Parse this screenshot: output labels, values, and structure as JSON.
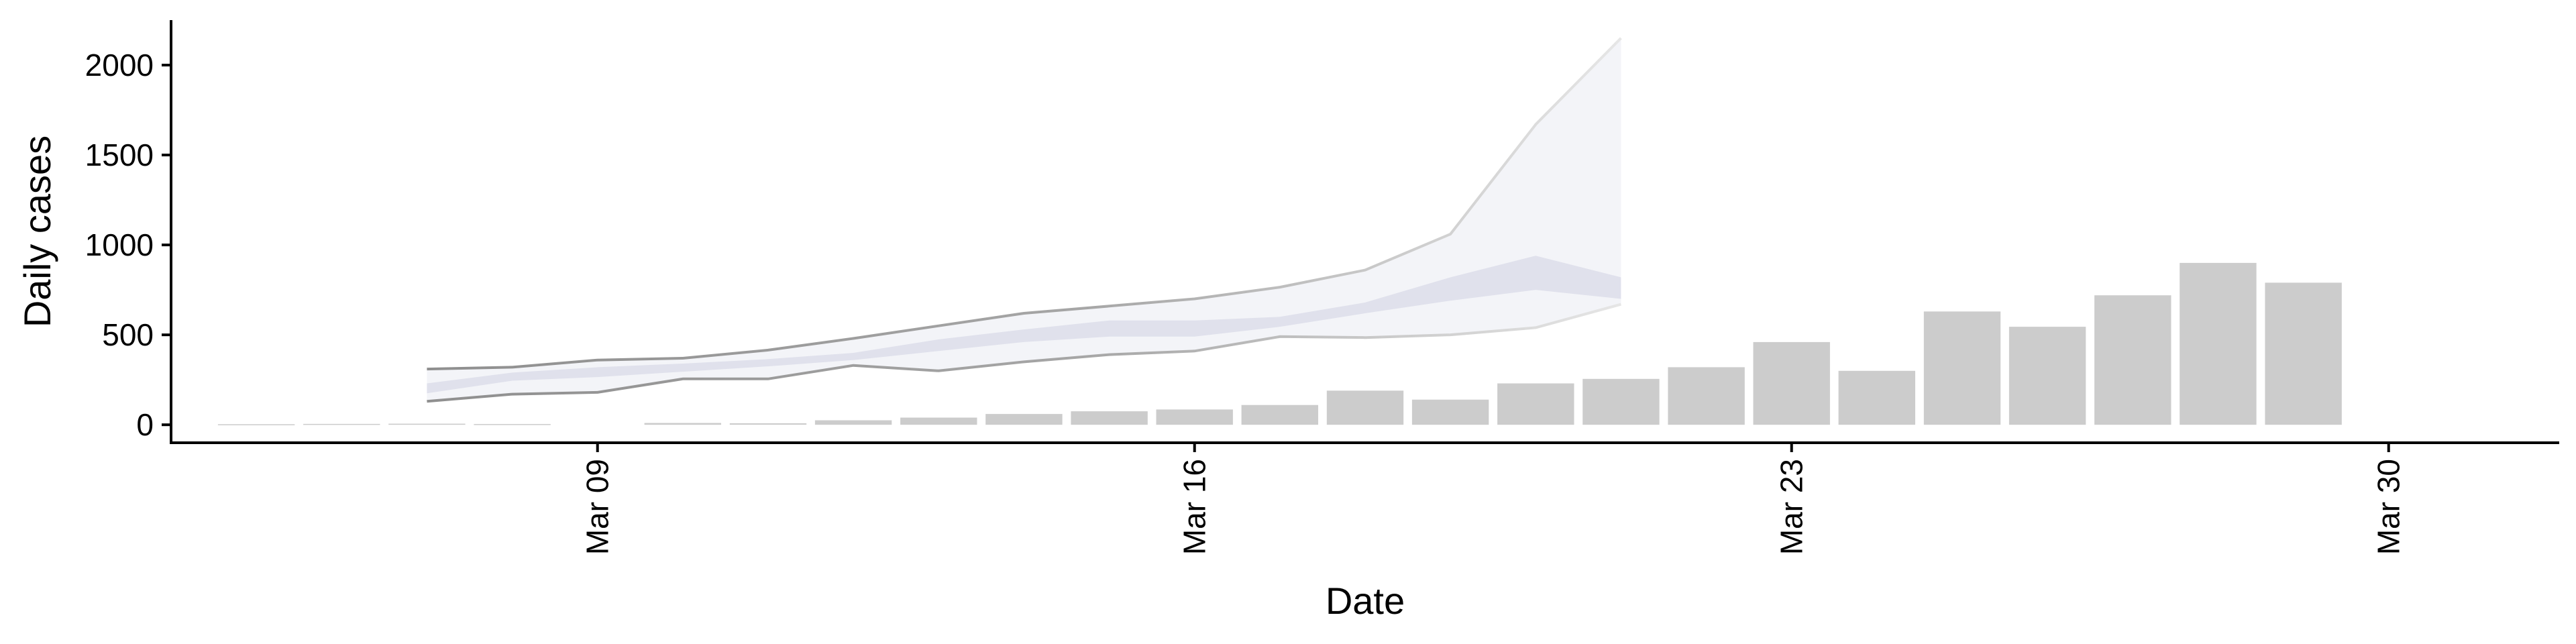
{
  "chart_data": {
    "type": "bar",
    "title": "",
    "xlabel": "Date",
    "ylabel": "Daily cases",
    "x_axis": {
      "type": "date",
      "range": [
        "2020-03-04",
        "2020-04-01"
      ],
      "tick_dates": [
        "2020-03-09",
        "2020-03-16",
        "2020-03-23",
        "2020-03-30"
      ],
      "tick_labels": [
        "Mar 09",
        "Mar 16",
        "Mar 23",
        "Mar 30"
      ],
      "tick_label_rotation": "vertical"
    },
    "y_axis": {
      "range": [
        -100,
        2250
      ],
      "ticks": [
        0,
        500,
        1000,
        1500,
        2000
      ]
    },
    "grid": false,
    "legend": "none",
    "colors": {
      "bars": "#cccccc",
      "outer_band": "#f2f3f7",
      "inner_band": "#d9dbe8",
      "band_line": "#8f8f8f",
      "axis": "#000000"
    },
    "bars": {
      "name": "",
      "dates": [
        "2020-03-05",
        "2020-03-06",
        "2020-03-07",
        "2020-03-08",
        "2020-03-09",
        "2020-03-10",
        "2020-03-11",
        "2020-03-12",
        "2020-03-13",
        "2020-03-14",
        "2020-03-15",
        "2020-03-16",
        "2020-03-17",
        "2020-03-18",
        "2020-03-19",
        "2020-03-20",
        "2020-03-21",
        "2020-03-22",
        "2020-03-23",
        "2020-03-24",
        "2020-03-25",
        "2020-03-26",
        "2020-03-27",
        "2020-03-28",
        "2020-03-29",
        "2020-03-30",
        "2020-03-31"
      ],
      "values": [
        3,
        5,
        6,
        4,
        null,
        10,
        8,
        25,
        40,
        60,
        75,
        85,
        110,
        190,
        140,
        230,
        255,
        320,
        460,
        300,
        630,
        545,
        720,
        900,
        790,
        null,
        null
      ]
    },
    "forecast_band": {
      "dates": [
        "2020-03-07",
        "2020-03-08",
        "2020-03-09",
        "2020-03-10",
        "2020-03-11",
        "2020-03-12",
        "2020-03-13",
        "2020-03-14",
        "2020-03-15",
        "2020-03-16",
        "2020-03-17",
        "2020-03-18",
        "2020-03-19",
        "2020-03-20",
        "2020-03-21",
        "2020-03-22"
      ],
      "outer_lower": [
        130,
        170,
        180,
        255,
        255,
        330,
        300,
        350,
        390,
        410,
        490,
        485,
        500,
        540,
        670,
        null
      ],
      "outer_upper": [
        310,
        320,
        360,
        370,
        415,
        480,
        550,
        620,
        660,
        700,
        765,
        860,
        1060,
        1670,
        2150,
        null
      ],
      "inner_lower": [
        175,
        245,
        265,
        295,
        325,
        360,
        410,
        460,
        490,
        490,
        545,
        620,
        690,
        750,
        700,
        null
      ],
      "inner_upper": [
        230,
        290,
        320,
        340,
        365,
        400,
        475,
        530,
        580,
        580,
        600,
        680,
        820,
        940,
        820,
        null
      ]
    }
  }
}
